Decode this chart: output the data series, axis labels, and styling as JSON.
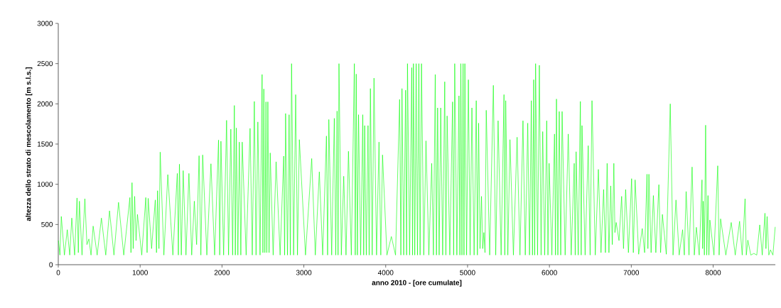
{
  "chart_data": {
    "type": "line",
    "xlabel": "anno 2010 - [ore cumulate]",
    "ylabel": "altezza dello strato di mescolamento [m s.l.s.]",
    "xlim": [
      0,
      8760
    ],
    "ylim": [
      0,
      3000
    ],
    "xticks": [
      0,
      1000,
      2000,
      3000,
      4000,
      5000,
      6000,
      7000,
      8000
    ],
    "yticks": [
      0,
      500,
      1000,
      1500,
      2000,
      2500,
      3000
    ],
    "grid": false,
    "marker": "none",
    "line_style": "solid",
    "series": [
      {
        "color": "#00ff00",
        "x": [
          2,
          20,
          37,
          75,
          110,
          140,
          165,
          200,
          229,
          245,
          258,
          290,
          325,
          350,
          374,
          400,
          426,
          475,
          527,
          580,
          626,
          680,
          736,
          800,
          875,
          888,
          901,
          915,
          933,
          950,
          967,
          1020,
          1069,
          1085,
          1098,
          1140,
          1185,
          1200,
          1213,
          1230,
          1245,
          1290,
          1338,
          1400,
          1454,
          1467,
          1480,
          1503,
          1526,
          1560,
          1596,
          1630,
          1662,
          1690,
          1720,
          1742,
          1764,
          1815,
          1865,
          1910,
          1958,
          1972,
          1987,
          2020,
          2056,
          2080,
          2108,
          2130,
          2151,
          2163,
          2175,
          2194,
          2212,
          2230,
          2247,
          2295,
          2343,
          2370,
          2395,
          2416,
          2438,
          2465,
          2490,
          2500,
          2511,
          2524,
          2537,
          2548,
          2560,
          2575,
          2589,
          2625,
          2661,
          2710,
          2754,
          2765,
          2777,
          2800,
          2820,
          2835,
          2850,
          2875,
          2900,
          2922,
          2945,
          3020,
          3096,
          3140,
          3189,
          3230,
          3276,
          3290,
          3305,
          3340,
          3372,
          3390,
          3406,
          3418,
          3429,
          3458,
          3487,
          3515,
          3545,
          3580,
          3617,
          3628,
          3640,
          3654,
          3668,
          3694,
          3720,
          3731,
          3743,
          3763,
          3784,
          3798,
          3813,
          3835,
          3857,
          3888,
          3918,
          3940,
          3961,
          4015,
          4069,
          4120,
          4170,
          4185,
          4199,
          4220,
          4243,
          4255,
          4266,
          4292,
          4318,
          4328,
          4339,
          4355,
          4372,
          4388,
          4405,
          4420,
          4437,
          4465,
          4492,
          4527,
          4562,
          4583,
          4605,
          4620,
          4634,
          4653,
          4672,
          4696,
          4721,
          4735,
          4750,
          4783,
          4817,
          4830,
          4843,
          4869,
          4895,
          4906,
          4918,
          4931,
          4945,
          4956,
          4967,
          4988,
          5010,
          5031,
          5053,
          5080,
          5106,
          5120,
          5135,
          5152,
          5170,
          5185,
          5199,
          5213,
          5228,
          5270,
          5315,
          5344,
          5373,
          5410,
          5445,
          5455,
          5466,
          5492,
          5518,
          5560,
          5605,
          5640,
          5677,
          5705,
          5735,
          5757,
          5779,
          5793,
          5808,
          5820,
          5831,
          5855,
          5877,
          5898,
          5918,
          5942,
          5967,
          5982,
          5996,
          6030,
          6062,
          6074,
          6086,
          6103,
          6120,
          6138,
          6155,
          6192,
          6230,
          6266,
          6303,
          6315,
          6326,
          6352,
          6378,
          6388,
          6398,
          6436,
          6474,
          6497,
          6520,
          6560,
          6598,
          6630,
          6662,
          6684,
          6705,
          6727,
          6749,
          6768,
          6787,
          6800,
          6816,
          6850,
          6882,
          6905,
          6931,
          6965,
          7004,
          7025,
          7047,
          7090,
          7134,
          7163,
          7192,
          7203,
          7215,
          7242,
          7270,
          7300,
          7337,
          7358,
          7380,
          7428,
          7476,
          7510,
          7546,
          7585,
          7627,
          7648,
          7670,
          7705,
          7743,
          7770,
          7795,
          7830,
          7864,
          7871,
          7879,
          7893,
          7908,
          7922,
          7937,
          7948,
          7960,
          8010,
          8056,
          8073,
          8091,
          8155,
          8221,
          8270,
          8323,
          8355,
          8390,
          8405,
          8424,
          8460,
          8497,
          8533,
          8569,
          8600,
          8633,
          8645,
          8659,
          8680,
          8700,
          8730,
          8758
        ],
        "values": [
          300,
          120,
          600,
          120,
          435,
          120,
          580,
          120,
          830,
          150,
          790,
          120,
          820,
          250,
          320,
          120,
          480,
          120,
          580,
          120,
          670,
          120,
          775,
          120,
          835,
          150,
          1020,
          200,
          850,
          300,
          625,
          120,
          835,
          150,
          825,
          200,
          805,
          150,
          920,
          200,
          1400,
          120,
          1120,
          120,
          1135,
          120,
          1250,
          120,
          1170,
          120,
          1135,
          120,
          790,
          250,
          1355,
          120,
          1365,
          120,
          1255,
          120,
          1550,
          120,
          1535,
          120,
          1795,
          120,
          1685,
          120,
          1980,
          120,
          1700,
          120,
          1525,
          120,
          1525,
          120,
          1695,
          120,
          2030,
          120,
          1775,
          120,
          2365,
          150,
          2185,
          150,
          2025,
          150,
          2025,
          150,
          1390,
          120,
          1280,
          120,
          1350,
          120,
          1880,
          120,
          1865,
          120,
          2500,
          120,
          2115,
          120,
          1555,
          120,
          1320,
          120,
          1155,
          120,
          1600,
          120,
          1805,
          120,
          1820,
          120,
          1910,
          120,
          2500,
          120,
          1100,
          120,
          1410,
          120,
          2500,
          120,
          2370,
          120,
          1865,
          120,
          1865,
          120,
          1730,
          120,
          1730,
          120,
          2190,
          120,
          2320,
          120,
          1525,
          120,
          1365,
          120,
          350,
          120,
          2055,
          120,
          2190,
          120,
          2170,
          120,
          2500,
          120,
          2450,
          120,
          2500,
          120,
          2500,
          120,
          2500,
          120,
          2500,
          120,
          1540,
          120,
          1260,
          120,
          2365,
          120,
          1950,
          120,
          1950,
          120,
          2275,
          120,
          1850,
          120,
          2025,
          120,
          2500,
          120,
          2100,
          120,
          2500,
          120,
          2500,
          120,
          2500,
          120,
          2300,
          120,
          1950,
          120,
          2040,
          120,
          1760,
          200,
          850,
          200,
          400,
          150,
          1920,
          120,
          2230,
          120,
          1790,
          120,
          2115,
          120,
          2040,
          120,
          1555,
          120,
          1585,
          120,
          1790,
          120,
          1760,
          120,
          2040,
          120,
          2300,
          120,
          2500,
          120,
          2480,
          120,
          1655,
          120,
          1790,
          120,
          1260,
          120,
          1625,
          120,
          2060,
          120,
          1905,
          120,
          1905,
          120,
          1625,
          120,
          1260,
          120,
          1405,
          120,
          2030,
          120,
          1730,
          120,
          1480,
          120,
          2040,
          120,
          1185,
          150,
          935,
          150,
          1260,
          150,
          980,
          250,
          1260,
          400,
          525,
          300,
          850,
          200,
          935,
          150,
          1070,
          150,
          1055,
          130,
          450,
          150,
          1125,
          200,
          1125,
          150,
          860,
          150,
          995,
          150,
          625,
          130,
          2000,
          120,
          805,
          120,
          435,
          120,
          910,
          120,
          1215,
          120,
          465,
          120,
          1055,
          200,
          790,
          120,
          1735,
          120,
          860,
          120,
          555,
          120,
          1230,
          120,
          570,
          120,
          525,
          120,
          540,
          120,
          820,
          120,
          305,
          120,
          140,
          120,
          495,
          120,
          640,
          200,
          600,
          120,
          185,
          120,
          470
        ]
      }
    ]
  }
}
